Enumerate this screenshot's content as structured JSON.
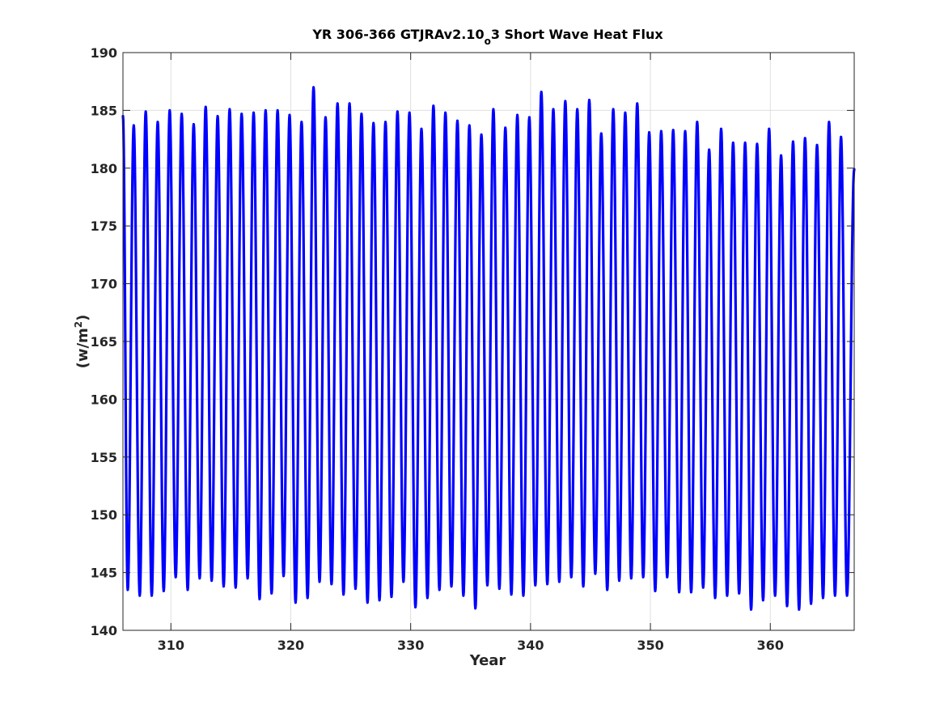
{
  "chart_data": {
    "type": "line",
    "title": {
      "prefix": "YR 306-366 GTJRAv2.10",
      "subscript": "o",
      "suffix": "3 Short Wave Heat Flux"
    },
    "xlabel": "Year",
    "ylabel": {
      "prefix": "(w/m",
      "superscript": "2",
      "suffix": ")"
    },
    "xlim": [
      306,
      367
    ],
    "ylim": [
      140,
      190
    ],
    "xticks": [
      310,
      320,
      330,
      340,
      350,
      360
    ],
    "yticks": [
      140,
      145,
      150,
      155,
      160,
      165,
      170,
      175,
      180,
      185,
      190
    ],
    "grid": true,
    "line_color": "#0000ff",
    "series": [
      {
        "start_value": 184.5,
        "end_value": 179.9,
        "peaks": [
          [
            306.9,
            183.7
          ],
          [
            307.9,
            184.9
          ],
          [
            308.9,
            184.0
          ],
          [
            309.9,
            185.0
          ],
          [
            310.9,
            184.7
          ],
          [
            311.9,
            183.8
          ],
          [
            312.9,
            185.3
          ],
          [
            313.9,
            184.5
          ],
          [
            314.9,
            185.1
          ],
          [
            315.9,
            184.7
          ],
          [
            316.9,
            184.8
          ],
          [
            317.9,
            185.0
          ],
          [
            318.9,
            185.0
          ],
          [
            319.9,
            184.6
          ],
          [
            320.9,
            184.0
          ],
          [
            321.9,
            187.0
          ],
          [
            322.9,
            184.4
          ],
          [
            323.9,
            185.6
          ],
          [
            324.9,
            185.6
          ],
          [
            325.9,
            184.7
          ],
          [
            326.9,
            183.9
          ],
          [
            327.9,
            184.0
          ],
          [
            328.9,
            184.9
          ],
          [
            329.9,
            184.8
          ],
          [
            330.9,
            183.4
          ],
          [
            331.9,
            185.4
          ],
          [
            332.9,
            184.8
          ],
          [
            333.9,
            184.1
          ],
          [
            334.9,
            183.7
          ],
          [
            335.9,
            182.9
          ],
          [
            336.9,
            185.1
          ],
          [
            337.9,
            183.5
          ],
          [
            338.9,
            184.6
          ],
          [
            339.9,
            184.4
          ],
          [
            340.9,
            186.6
          ],
          [
            341.9,
            185.1
          ],
          [
            342.9,
            185.8
          ],
          [
            343.9,
            185.1
          ],
          [
            344.9,
            185.9
          ],
          [
            345.9,
            183.0
          ],
          [
            346.9,
            185.1
          ],
          [
            347.9,
            184.8
          ],
          [
            348.9,
            185.6
          ],
          [
            349.9,
            183.1
          ],
          [
            350.9,
            183.2
          ],
          [
            351.9,
            183.3
          ],
          [
            352.9,
            183.2
          ],
          [
            353.9,
            184.0
          ],
          [
            354.9,
            181.6
          ],
          [
            355.9,
            183.4
          ],
          [
            356.9,
            182.2
          ],
          [
            357.9,
            182.2
          ],
          [
            358.9,
            182.1
          ],
          [
            359.9,
            183.4
          ],
          [
            360.9,
            181.1
          ],
          [
            361.9,
            182.3
          ],
          [
            362.9,
            182.6
          ],
          [
            363.9,
            182.0
          ],
          [
            364.9,
            184.0
          ],
          [
            365.9,
            182.7
          ]
        ],
        "troughs": [
          [
            306.4,
            143.5
          ],
          [
            307.4,
            143.0
          ],
          [
            308.4,
            143.0
          ],
          [
            309.4,
            143.4
          ],
          [
            310.4,
            144.6
          ],
          [
            311.4,
            143.5
          ],
          [
            312.4,
            144.5
          ],
          [
            313.4,
            144.3
          ],
          [
            314.4,
            143.8
          ],
          [
            315.4,
            143.7
          ],
          [
            316.4,
            144.5
          ],
          [
            317.4,
            142.7
          ],
          [
            318.4,
            143.2
          ],
          [
            319.4,
            144.7
          ],
          [
            320.4,
            142.4
          ],
          [
            321.4,
            142.8
          ],
          [
            322.4,
            144.2
          ],
          [
            323.4,
            144.0
          ],
          [
            324.4,
            143.1
          ],
          [
            325.4,
            143.6
          ],
          [
            326.4,
            142.4
          ],
          [
            327.4,
            142.6
          ],
          [
            328.4,
            142.9
          ],
          [
            329.4,
            144.2
          ],
          [
            330.4,
            142.0
          ],
          [
            331.4,
            142.8
          ],
          [
            332.4,
            143.5
          ],
          [
            333.4,
            143.8
          ],
          [
            334.4,
            143.0
          ],
          [
            335.4,
            141.9
          ],
          [
            336.4,
            143.9
          ],
          [
            337.4,
            143.6
          ],
          [
            338.4,
            143.1
          ],
          [
            339.4,
            143.0
          ],
          [
            340.4,
            143.9
          ],
          [
            341.4,
            144.0
          ],
          [
            342.4,
            144.2
          ],
          [
            343.4,
            144.6
          ],
          [
            344.4,
            143.8
          ],
          [
            345.4,
            144.9
          ],
          [
            346.4,
            143.5
          ],
          [
            347.4,
            144.3
          ],
          [
            348.4,
            144.5
          ],
          [
            349.4,
            144.6
          ],
          [
            350.4,
            143.4
          ],
          [
            351.4,
            144.6
          ],
          [
            352.4,
            143.3
          ],
          [
            353.4,
            143.3
          ],
          [
            354.4,
            143.7
          ],
          [
            355.4,
            142.8
          ],
          [
            356.4,
            143.0
          ],
          [
            357.4,
            143.2
          ],
          [
            358.4,
            141.8
          ],
          [
            359.4,
            142.6
          ],
          [
            360.4,
            143.0
          ],
          [
            361.4,
            142.1
          ],
          [
            362.4,
            141.8
          ],
          [
            363.4,
            142.3
          ],
          [
            364.4,
            142.8
          ],
          [
            365.4,
            143.0
          ],
          [
            366.4,
            143.0
          ]
        ]
      }
    ]
  }
}
